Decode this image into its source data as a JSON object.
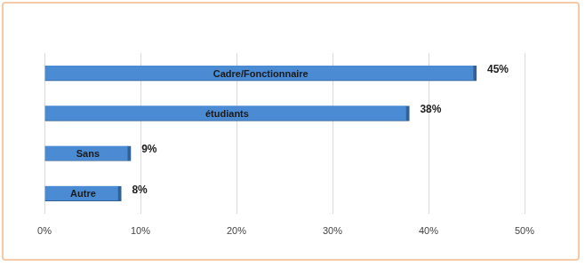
{
  "chart_data": {
    "type": "bar",
    "orientation": "horizontal",
    "categories": [
      "Cadre/Fonctionnaire",
      "étudiants",
      "Sans",
      "Autre"
    ],
    "values": [
      45,
      38,
      9,
      8
    ],
    "value_labels": [
      "45%",
      "38%",
      "9%",
      "8%"
    ],
    "data_labels": true,
    "color": "#4a8bd4",
    "xlim": [
      0,
      50
    ],
    "xticks": [
      {
        "value": 0,
        "label": "0%"
      },
      {
        "value": 10,
        "label": "10%"
      },
      {
        "value": 20,
        "label": "20%"
      },
      {
        "value": 30,
        "label": "30%"
      },
      {
        "value": 40,
        "label": "40%"
      },
      {
        "value": 50,
        "label": "50%"
      }
    ],
    "grid": true,
    "tick_labels": "x"
  }
}
